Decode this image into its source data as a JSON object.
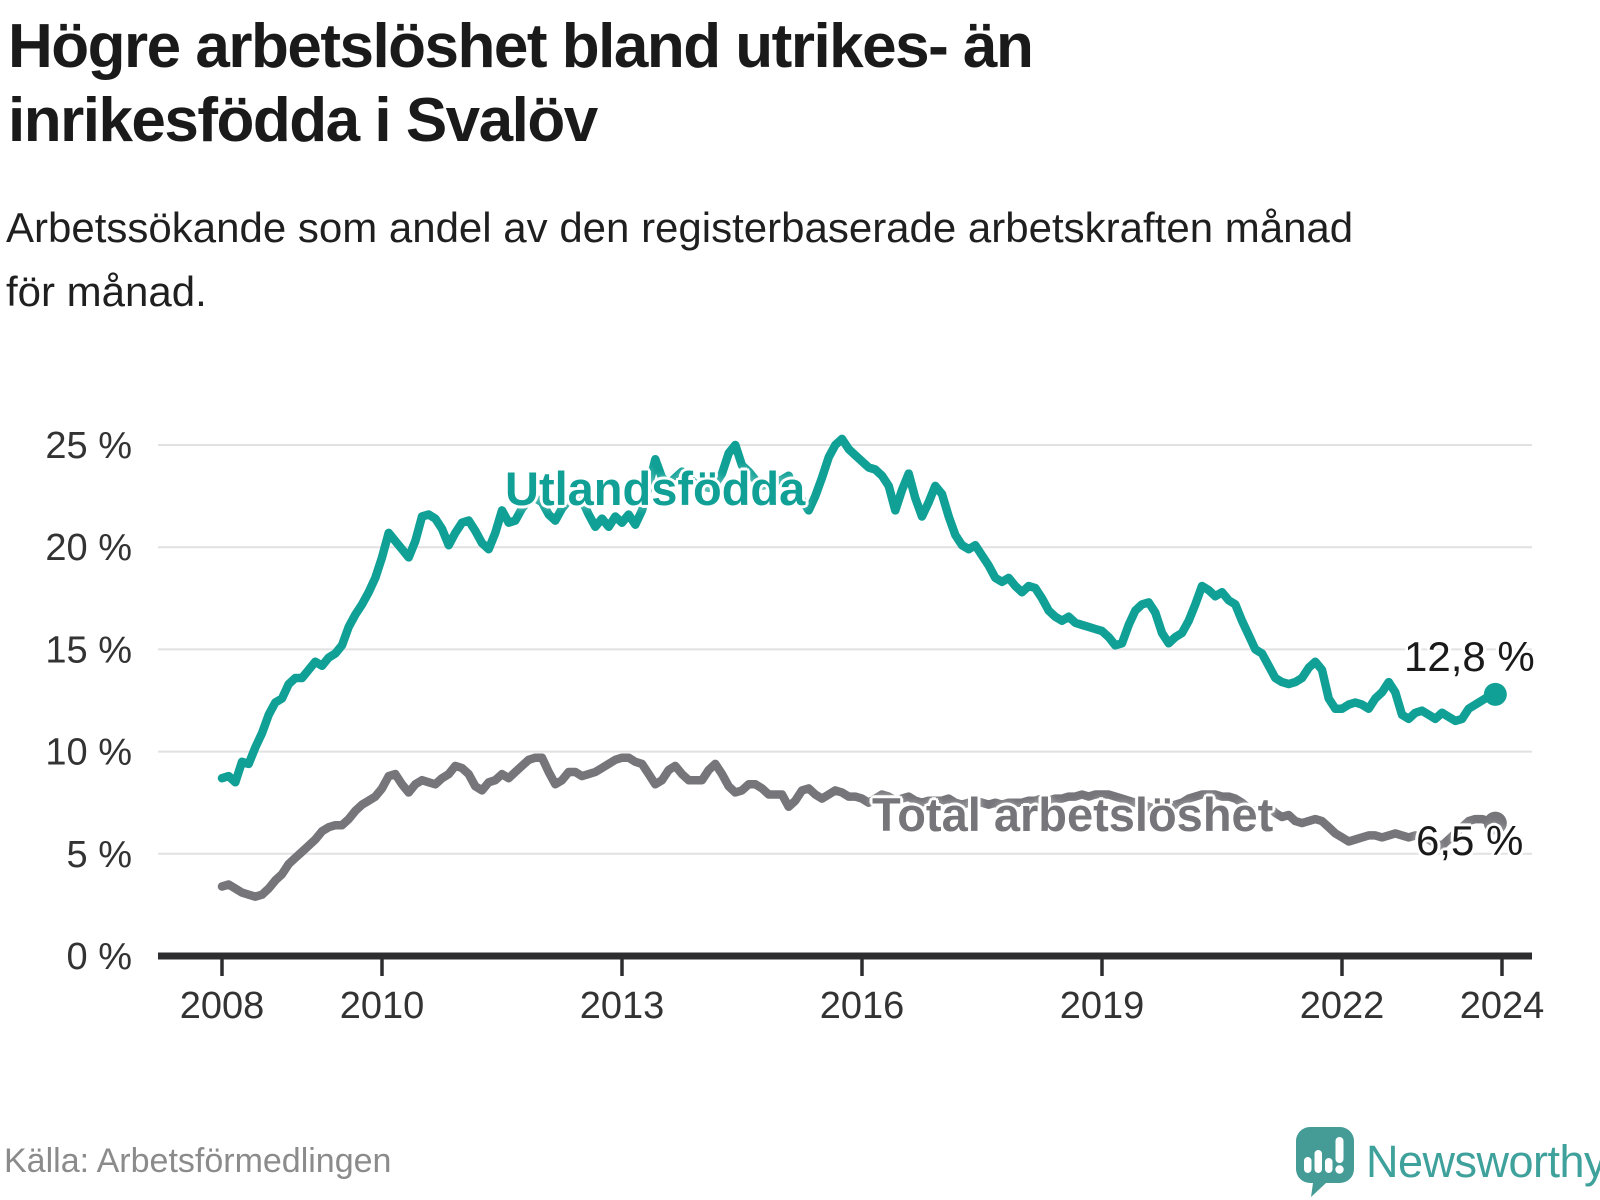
{
  "header": {
    "title": "Högre arbetslöshet bland utrikes- än\ninrikesfödda i Svalöv",
    "subtitle": "Arbetssökande som andel av den registerbaserade arbetskraften månad\nför månad."
  },
  "chart_data": {
    "type": "line",
    "title": "Högre arbetslöshet bland utrikes- än inrikesfödda i Svalöv",
    "xlabel": "",
    "ylabel": "",
    "frequency": "monthly",
    "x_start": "2008-01",
    "x_end": "2023-12",
    "ylim": [
      0,
      26.5
    ],
    "grid": true,
    "y_ticks": [
      {
        "value": 0,
        "label": "0 %"
      },
      {
        "value": 5,
        "label": "5 %"
      },
      {
        "value": 10,
        "label": "10 %"
      },
      {
        "value": 15,
        "label": "15 %"
      },
      {
        "value": 20,
        "label": "20 %"
      },
      {
        "value": 25,
        "label": "25 %"
      }
    ],
    "x_ticks": [
      {
        "year": 2008,
        "label": "2008"
      },
      {
        "year": 2010,
        "label": "2010"
      },
      {
        "year": 2013,
        "label": "2013"
      },
      {
        "year": 2016,
        "label": "2016"
      },
      {
        "year": 2019,
        "label": "2019"
      },
      {
        "year": 2022,
        "label": "2022"
      },
      {
        "year": 2024,
        "label": "2024"
      }
    ],
    "series": [
      {
        "name": "Utlandsfödda",
        "color": "#10a096",
        "end_label": "12,8 %",
        "end_value": 12.8,
        "values": [
          8.7,
          8.8,
          8.5,
          9.5,
          9.4,
          10.2,
          10.9,
          11.8,
          12.4,
          12.6,
          13.3,
          13.6,
          13.6,
          14.0,
          14.4,
          14.2,
          14.6,
          14.8,
          15.2,
          16.1,
          16.7,
          17.2,
          17.8,
          18.5,
          19.5,
          20.7,
          20.3,
          19.9,
          19.5,
          20.3,
          21.5,
          21.6,
          21.4,
          20.9,
          20.1,
          20.7,
          21.2,
          21.3,
          20.8,
          20.2,
          19.9,
          20.7,
          21.8,
          21.2,
          21.3,
          21.9,
          22.3,
          22.4,
          22.2,
          21.6,
          21.3,
          21.9,
          22.3,
          22.5,
          22.3,
          21.6,
          21.0,
          21.4,
          21.0,
          21.5,
          21.2,
          21.6,
          21.1,
          21.8,
          23.0,
          24.3,
          23.4,
          23.1,
          23.4,
          23.7,
          23.4,
          23.1,
          23.0,
          22.9,
          23.1,
          23.6,
          24.6,
          25.0,
          24.0,
          23.7,
          23.3,
          23.0,
          23.1,
          23.2,
          23.3,
          23.5,
          22.6,
          22.3,
          21.8,
          22.5,
          23.4,
          24.4,
          25.0,
          25.3,
          24.8,
          24.5,
          24.2,
          23.9,
          23.8,
          23.5,
          23.0,
          21.8,
          22.8,
          23.6,
          22.4,
          21.5,
          22.2,
          23.0,
          22.6,
          21.5,
          20.6,
          20.1,
          19.9,
          20.1,
          19.6,
          19.1,
          18.5,
          18.3,
          18.5,
          18.1,
          17.8,
          18.1,
          18.0,
          17.5,
          16.9,
          16.6,
          16.4,
          16.6,
          16.3,
          16.2,
          16.1,
          16.0,
          15.9,
          15.6,
          15.2,
          15.3,
          16.2,
          16.9,
          17.2,
          17.3,
          16.8,
          15.8,
          15.3,
          15.6,
          15.8,
          16.4,
          17.2,
          18.1,
          17.9,
          17.6,
          17.8,
          17.4,
          17.2,
          16.4,
          15.7,
          15.0,
          14.8,
          14.2,
          13.6,
          13.4,
          13.3,
          13.4,
          13.6,
          14.1,
          14.4,
          14.0,
          12.6,
          12.1,
          12.1,
          12.3,
          12.4,
          12.3,
          12.1,
          12.6,
          12.9,
          13.4,
          12.9,
          11.8,
          11.6,
          11.9,
          12.0,
          11.8,
          11.6,
          11.9,
          11.7,
          11.5,
          11.6,
          12.1,
          12.3,
          12.5,
          12.7,
          12.8
        ]
      },
      {
        "name": "Total arbetslöshet",
        "color": "#76757a",
        "end_label": "6,5 %",
        "end_value": 6.5,
        "values": [
          3.4,
          3.5,
          3.3,
          3.1,
          3.0,
          2.9,
          3.0,
          3.3,
          3.7,
          4.0,
          4.5,
          4.8,
          5.1,
          5.4,
          5.7,
          6.1,
          6.3,
          6.4,
          6.4,
          6.7,
          7.1,
          7.4,
          7.6,
          7.8,
          8.2,
          8.8,
          8.9,
          8.4,
          8.0,
          8.4,
          8.6,
          8.5,
          8.4,
          8.7,
          8.9,
          9.3,
          9.2,
          8.9,
          8.3,
          8.1,
          8.5,
          8.6,
          8.9,
          8.7,
          9.0,
          9.3,
          9.6,
          9.7,
          9.7,
          9.0,
          8.4,
          8.6,
          9.0,
          9.0,
          8.8,
          8.9,
          9.0,
          9.2,
          9.4,
          9.6,
          9.7,
          9.7,
          9.5,
          9.4,
          8.9,
          8.4,
          8.6,
          9.1,
          9.3,
          8.9,
          8.6,
          8.6,
          8.6,
          9.1,
          9.4,
          8.9,
          8.3,
          8.0,
          8.1,
          8.4,
          8.4,
          8.2,
          7.9,
          7.9,
          7.9,
          7.3,
          7.6,
          8.1,
          8.2,
          7.9,
          7.7,
          7.9,
          8.1,
          8.0,
          7.8,
          7.8,
          7.7,
          7.5,
          7.7,
          7.9,
          7.8,
          7.6,
          7.7,
          7.8,
          7.6,
          7.5,
          7.6,
          7.6,
          7.6,
          7.7,
          7.5,
          7.4,
          7.5,
          7.6,
          7.5,
          7.4,
          7.5,
          7.4,
          7.5,
          7.5,
          7.5,
          7.6,
          7.6,
          7.7,
          7.6,
          7.7,
          7.7,
          7.8,
          7.8,
          7.9,
          7.8,
          7.9,
          7.9,
          7.9,
          7.8,
          7.7,
          7.6,
          7.5,
          7.4,
          7.3,
          7.2,
          7.2,
          7.3,
          7.4,
          7.5,
          7.7,
          7.8,
          7.9,
          7.9,
          7.9,
          7.8,
          7.8,
          7.7,
          7.5,
          7.2,
          7.1,
          7.2,
          7.3,
          7.0,
          6.8,
          6.9,
          6.6,
          6.5,
          6.6,
          6.7,
          6.6,
          6.3,
          6.0,
          5.8,
          5.6,
          5.7,
          5.8,
          5.9,
          5.9,
          5.8,
          5.9,
          6.0,
          5.9,
          5.8,
          5.9,
          5.8,
          5.7,
          5.5,
          5.4,
          5.7,
          6.0,
          6.3,
          6.6,
          6.7,
          6.7,
          6.6,
          6.5
        ]
      }
    ],
    "colors": {
      "accent_teal": "#10a096",
      "gray_series": "#76757a",
      "gridline": "#e1e1e1",
      "axis": "#2d2d30",
      "tick_text": "#333333"
    },
    "legend_position": "inline-labels"
  },
  "footer": {
    "source": "Källa: Arbetsförmedlingen",
    "brand": "Newsworthy"
  }
}
